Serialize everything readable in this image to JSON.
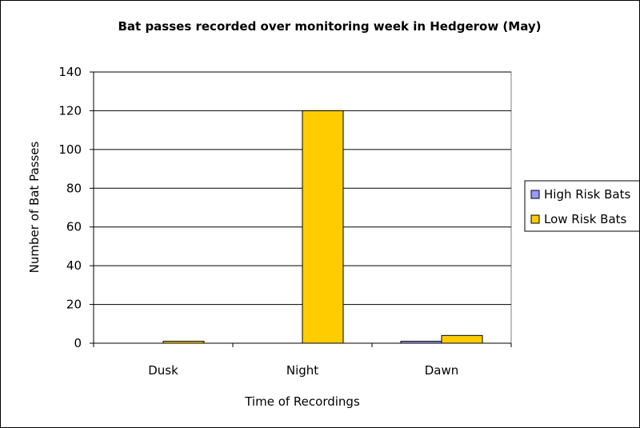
{
  "chart_data": {
    "type": "bar",
    "title": "Bat passes recorded over monitoring week in Hedgerow (May)",
    "xlabel": "Time of Recordings",
    "ylabel": "Number of Bat Passes",
    "categories": [
      "Dusk",
      "Night",
      "Dawn"
    ],
    "ylim": [
      0,
      140
    ],
    "yticks": [
      0,
      20,
      40,
      60,
      80,
      100,
      120,
      140
    ],
    "grid": true,
    "legend_position": "right",
    "series": [
      {
        "name": "High Risk Bats",
        "color": "#9999ff",
        "values": [
          0,
          0,
          1
        ]
      },
      {
        "name": "Low Risk Bats",
        "color": "#ffcc00",
        "values": [
          1,
          120,
          4
        ]
      }
    ]
  }
}
